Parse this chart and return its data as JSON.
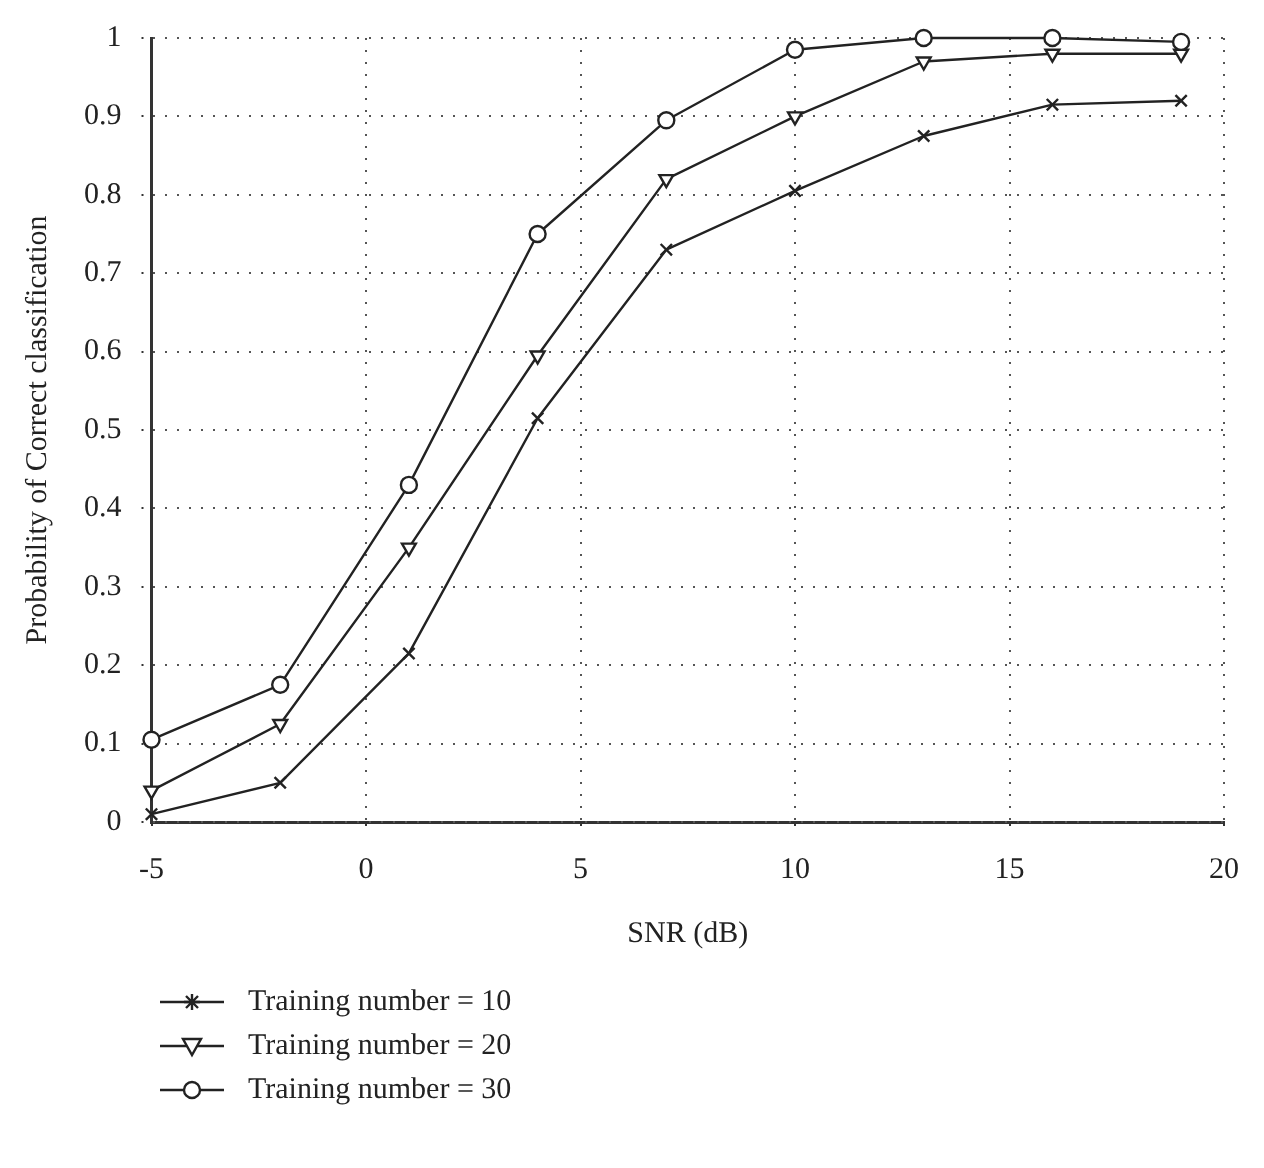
{
  "chart_data": {
    "type": "line",
    "xlabel": "SNR (dB)",
    "ylabel": "Probability of Correct classification",
    "x": [
      -5,
      -2,
      1,
      4,
      7,
      10,
      13,
      16,
      19
    ],
    "xlim": [
      -5,
      20
    ],
    "xticks": [
      -5,
      0,
      5,
      10,
      15,
      20
    ],
    "ylim": [
      0,
      1
    ],
    "yticks": [
      0,
      0.1,
      0.2,
      0.3,
      0.4,
      0.5,
      0.6,
      0.7,
      0.8,
      0.9,
      1
    ],
    "grid": true,
    "legend": "bottom left",
    "line_style": "solid",
    "series": [
      {
        "name": "Training number = 10",
        "color": "#222222",
        "marker": "cross",
        "values": [
          0.01,
          0.05,
          0.215,
          0.515,
          0.73,
          0.805,
          0.875,
          0.915,
          0.92
        ]
      },
      {
        "name": "Training number = 20",
        "color": "#222222",
        "marker": "triangle",
        "values": [
          0.04,
          0.125,
          0.35,
          0.595,
          0.82,
          0.9,
          0.97,
          0.98,
          0.98
        ]
      },
      {
        "name": "Training number = 30",
        "color": "#222222",
        "marker": "circle",
        "values": [
          0.105,
          0.175,
          0.43,
          0.75,
          0.895,
          0.985,
          1.0,
          1.0,
          0.995
        ]
      }
    ]
  }
}
